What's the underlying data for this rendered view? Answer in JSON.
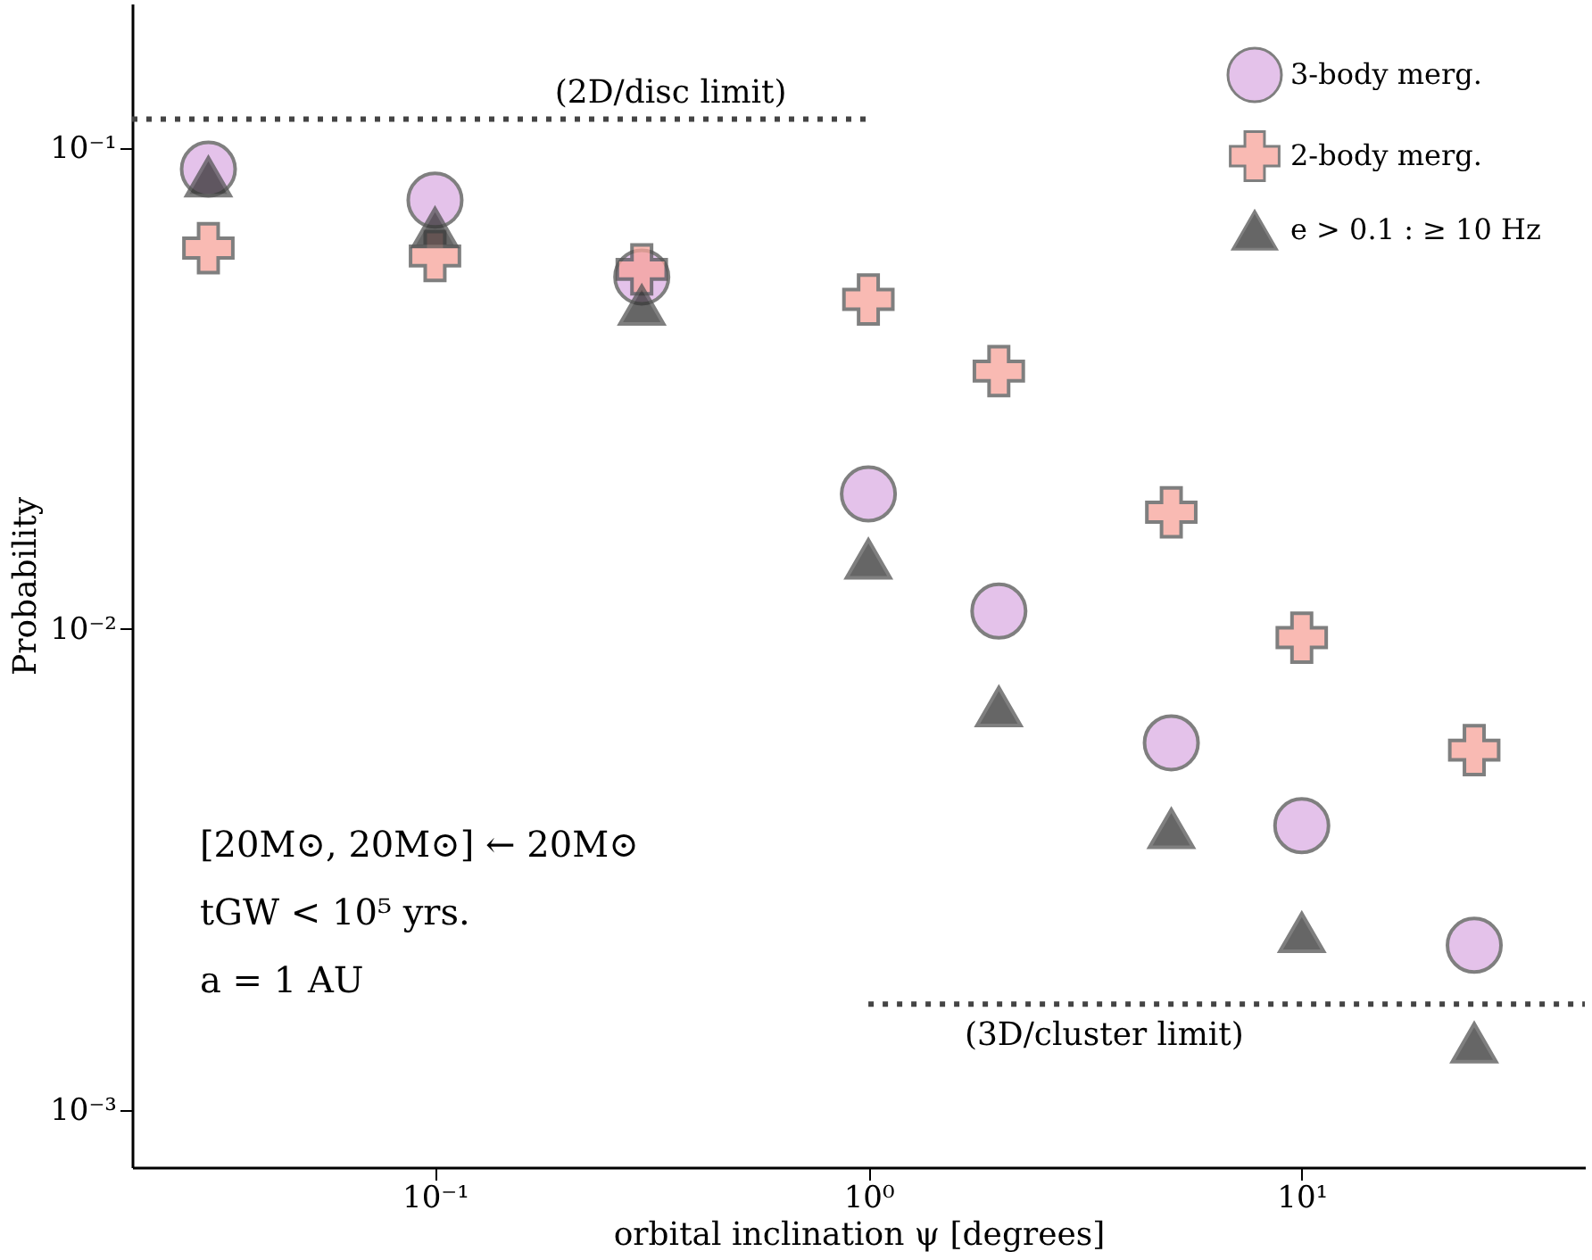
{
  "chart_data": {
    "type": "scatter",
    "xlabel": "orbital inclination ψ [degrees]",
    "ylabel": "Probability",
    "log": "xy",
    "grid": false,
    "legend": "top right",
    "xlim": [
      0.02,
      45
    ],
    "ylim": [
      0.00076,
      0.2
    ],
    "xticks": [
      {
        "value": 0.1,
        "label": "10⁻¹"
      },
      {
        "value": 1,
        "label": "10⁰"
      },
      {
        "value": 10,
        "label": "10¹"
      }
    ],
    "yticks": [
      {
        "value": 0.001,
        "label": "10⁻³"
      },
      {
        "value": 0.01,
        "label": "10⁻²"
      },
      {
        "value": 0.1,
        "label": "10⁻¹"
      }
    ],
    "x": [
      0.03,
      0.1,
      0.3,
      1,
      2,
      5,
      10,
      25
    ],
    "series": [
      {
        "name": "3-body merg.",
        "color": "#dbaee3",
        "marker": "circle",
        "values": [
          0.0905,
          0.078,
          0.054,
          0.0191,
          0.0109,
          0.0058,
          0.0039,
          0.0022
        ]
      },
      {
        "name": "2-body merg.",
        "color": "#f7a39a",
        "marker": "cross",
        "values": [
          0.062,
          0.0597,
          0.056,
          0.0485,
          0.0344,
          0.0175,
          0.0096,
          0.0056
        ]
      },
      {
        "name": "e > 0.1 : ≥ 10 Hz",
        "color": "#333333",
        "marker": "triangle",
        "values": [
          0.0873,
          0.0684,
          0.0472,
          0.014,
          0.0069,
          0.00385,
          0.00234,
          0.00138
        ]
      },
      {
        "type": "line",
        "color": "#444444",
        "line_style": "dotted",
        "x": [
          0.02,
          1
        ],
        "values": [
          0.115,
          0.115
        ]
      },
      {
        "type": "line",
        "color": "#444444",
        "line_style": "dotted",
        "x": [
          1,
          45
        ],
        "values": [
          0.00166,
          0.00166
        ]
      }
    ],
    "annotations": [
      {
        "text": "(2D/disc limit)",
        "x": 0.35,
        "y": 0.115
      },
      {
        "text": "(3D/cluster limit)",
        "x": 3.5,
        "y": 0.00166
      },
      "[20M⊙, 20M⊙] ← 20M⊙",
      "tGW < 10⁵ yrs.",
      "a = 1 AU"
    ]
  }
}
